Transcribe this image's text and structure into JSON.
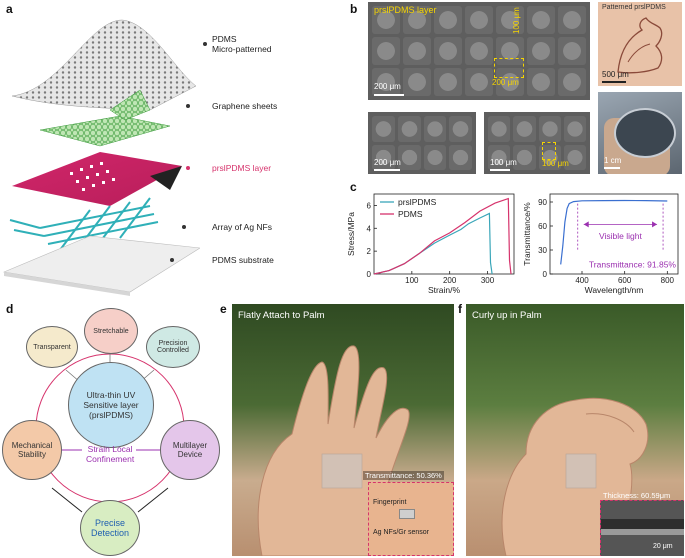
{
  "panel_a": {
    "label": "a",
    "layers": [
      {
        "text": "PDMS\nMicro-patterned"
      },
      {
        "text": "Graphene sheets"
      },
      {
        "text": "prslPDMS layer"
      },
      {
        "text": "Array of Ag NFs"
      },
      {
        "text": "PDMS substrate"
      }
    ]
  },
  "panel_b": {
    "label": "b",
    "sem_main_title": "prslPDMS layer",
    "sem_main_scale": "200 μm",
    "sem_main_dim_v": "100 μm",
    "sem_main_dim_h": "200 μm",
    "sem_bl_scale": "200 μm",
    "sem_br_scale": "100 μm",
    "sem_br_dim": "100 μm",
    "photo_top_title": "Patterned prslPDMS",
    "photo_top_scale": "500 μm",
    "photo_bottom_scale": "1 cm"
  },
  "panel_c": {
    "label": "c"
  },
  "chart_data": [
    {
      "type": "line",
      "xlabel": "Strain/%",
      "ylabel": "Stress/MPa",
      "xlim": [
        0,
        370
      ],
      "ylim": [
        0,
        7
      ],
      "xticks": [
        "100",
        "200",
        "300"
      ],
      "yticks": [
        "0",
        "2",
        "4",
        "6"
      ],
      "legend_position": "top-left",
      "series": [
        {
          "name": "prslPDMS",
          "color": "#3aa6b9",
          "x": [
            0,
            40,
            80,
            120,
            160,
            200,
            230,
            250,
            280,
            305,
            308,
            312
          ],
          "y": [
            0,
            0.3,
            0.9,
            1.8,
            2.7,
            3.4,
            3.9,
            4.4,
            4.9,
            5.3,
            1.0,
            0
          ]
        },
        {
          "name": "PDMS",
          "color": "#d6336c",
          "x": [
            0,
            40,
            80,
            120,
            160,
            200,
            240,
            280,
            320,
            355,
            358,
            362
          ],
          "y": [
            0,
            0.3,
            0.9,
            1.8,
            2.9,
            3.6,
            4.5,
            5.5,
            6.2,
            6.6,
            1.2,
            0
          ]
        }
      ]
    },
    {
      "type": "line",
      "xlabel": "Wavelength/nm",
      "ylabel": "Transmittance/%",
      "xlim": [
        250,
        850
      ],
      "ylim": [
        0,
        100
      ],
      "xticks": [
        "400",
        "600",
        "800"
      ],
      "yticks": [
        "0",
        "30",
        "60",
        "90"
      ],
      "annotations": [
        "Visible light",
        "Transmittance: 91.85%"
      ],
      "series": [
        {
          "name": "",
          "color": "#3a6fd0",
          "x": [
            300,
            310,
            320,
            330,
            340,
            360,
            400,
            500,
            600,
            700,
            800
          ],
          "y": [
            12,
            35,
            65,
            82,
            88,
            90.5,
            91.5,
            91.8,
            91.9,
            91.8,
            91.2
          ]
        }
      ]
    }
  ],
  "panel_d": {
    "label": "d",
    "center": "Ultra-thin UV\nSensitive layer\n(prslPDMS)",
    "satellites": [
      "Transparent",
      "Stretchable",
      "Precision\nControlled"
    ],
    "left": "Mechanical\nStability",
    "right": "Multilayer\nDevice",
    "middle": "Strain Local\nConfinement",
    "bottom": "Precise\nDetection"
  },
  "panel_e": {
    "label": "e",
    "title": "Flatly Attach to Palm",
    "transmittance": "Transmittance: 50.36%",
    "fingerprint": "Fingerprint",
    "sensor": "Ag NFs/Gr sensor"
  },
  "panel_f": {
    "label": "f",
    "title": "Curly up in Palm",
    "thickness": "Thickness: 60.59μm",
    "scale": "20 μm"
  },
  "colors": {
    "pink": "#d6336c",
    "teal": "#3aa6b9",
    "blue": "#3a6fd0",
    "purple": "#9b30b0",
    "gold": "#f5d400"
  }
}
